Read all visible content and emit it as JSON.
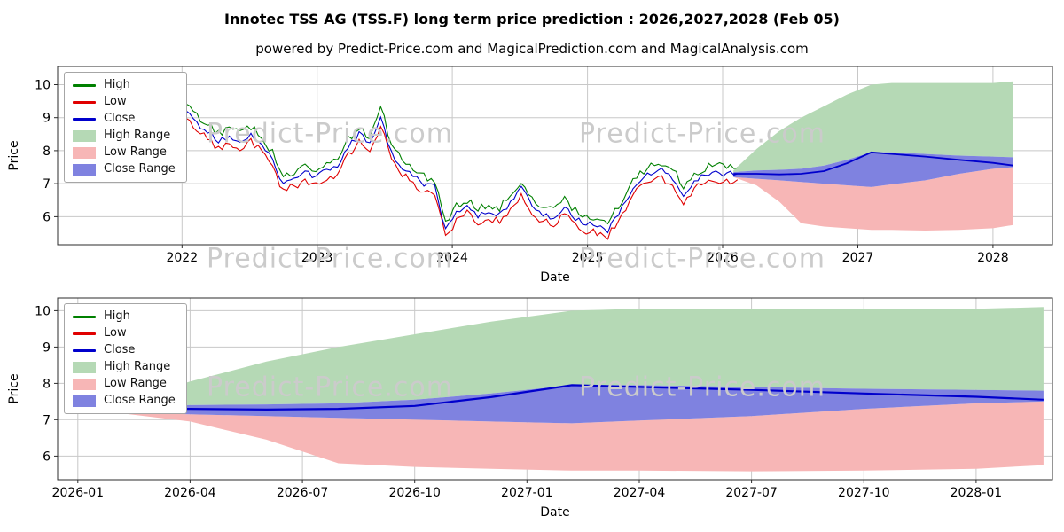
{
  "header": {
    "title": "Innotec TSS AG (TSS.F) long term price prediction : 2026,2027,2028 (Feb 05)",
    "subtitle": "powered by Predict-Price.com and MagicalPrediction.com and MagicalAnalysis.com"
  },
  "watermark": "Predict-Price.com",
  "colors": {
    "high_line": "#008000",
    "low_line": "#e00000",
    "close_line": "#0000cc",
    "high_range_fill": "#b5d9b5",
    "low_range_fill": "#f7b6b6",
    "close_range_fill": "#7f82e0",
    "grid": "#c8c8c8",
    "axis": "#2b2b2b",
    "watermark_text": "#cbcbcb"
  },
  "chart_data": [
    {
      "type": "line",
      "role": "history-and-prediction",
      "xlabel": "Date",
      "ylabel": "Price",
      "xlim": [
        2021.08,
        2028.44
      ],
      "ylim": [
        5.15,
        10.55
      ],
      "grid": true,
      "legend_position": "upper left",
      "legend": [
        "High",
        "Low",
        "Close",
        "High Range",
        "Low Range",
        "Close Range"
      ],
      "xticks": [
        {
          "v": 2022,
          "label": "2022"
        },
        {
          "v": 2023,
          "label": "2023"
        },
        {
          "v": 2024,
          "label": "2024"
        },
        {
          "v": 2025,
          "label": "2025"
        },
        {
          "v": 2026,
          "label": "2026"
        },
        {
          "v": 2027,
          "label": "2027"
        },
        {
          "v": 2028,
          "label": "2028"
        }
      ],
      "yticks": [
        6,
        7,
        8,
        9,
        10
      ],
      "historical": {
        "x": [
          2021.55,
          2021.63,
          2021.71,
          2021.79,
          2021.87,
          2021.95,
          2022.03,
          2022.11,
          2022.19,
          2022.27,
          2022.35,
          2022.43,
          2022.51,
          2022.59,
          2022.67,
          2022.75,
          2022.83,
          2022.91,
          2022.99,
          2023.07,
          2023.15,
          2023.23,
          2023.31,
          2023.39,
          2023.47,
          2023.55,
          2023.63,
          2023.71,
          2023.79,
          2023.87,
          2023.95,
          2024.03,
          2024.11,
          2024.19,
          2024.27,
          2024.35,
          2024.43,
          2024.51,
          2024.59,
          2024.67,
          2024.75,
          2024.83,
          2024.91,
          2024.99,
          2025.07,
          2025.15,
          2025.23,
          2025.31,
          2025.39,
          2025.47,
          2025.55,
          2025.63,
          2025.71,
          2025.79,
          2025.87,
          2025.95,
          2026.03,
          2026.11
        ],
        "high": [
          10.02,
          9.82,
          10.02,
          9.72,
          9.92,
          9.62,
          9.42,
          9.02,
          8.82,
          8.52,
          8.67,
          8.52,
          8.72,
          8.42,
          7.92,
          7.22,
          7.37,
          7.52,
          7.47,
          7.62,
          7.72,
          8.32,
          8.72,
          8.42,
          9.45,
          8.12,
          7.72,
          7.42,
          7.22,
          7.12,
          5.85,
          6.32,
          6.52,
          6.22,
          6.37,
          6.27,
          6.62,
          7.12,
          6.52,
          6.32,
          6.17,
          6.52,
          6.17,
          6.02,
          5.97,
          5.82,
          6.32,
          6.92,
          7.32,
          7.57,
          7.62,
          7.42,
          6.92,
          7.32,
          7.47,
          7.57,
          7.5,
          7.48
        ],
        "low": [
          9.58,
          9.38,
          9.58,
          9.28,
          9.48,
          9.18,
          8.98,
          8.58,
          8.38,
          8.08,
          8.23,
          8.08,
          8.28,
          7.98,
          7.48,
          6.78,
          6.93,
          7.08,
          7.03,
          7.18,
          7.28,
          7.88,
          8.28,
          7.98,
          8.8,
          7.68,
          7.28,
          6.98,
          6.78,
          6.68,
          5.38,
          5.88,
          6.08,
          5.78,
          5.93,
          5.83,
          6.18,
          6.68,
          6.08,
          5.88,
          5.73,
          6.08,
          5.73,
          5.58,
          5.53,
          5.4,
          5.88,
          6.48,
          6.88,
          7.13,
          7.18,
          6.98,
          6.48,
          6.88,
          7.03,
          7.13,
          7.1,
          7.12
        ],
        "close": [
          9.8,
          9.6,
          9.8,
          9.5,
          9.7,
          9.4,
          9.2,
          8.8,
          8.6,
          8.3,
          8.45,
          8.3,
          8.5,
          8.2,
          7.7,
          7.0,
          7.15,
          7.3,
          7.25,
          7.4,
          7.5,
          8.1,
          8.5,
          8.2,
          9.1,
          7.9,
          7.5,
          7.2,
          7.0,
          6.9,
          5.6,
          6.1,
          6.3,
          6.0,
          6.15,
          6.05,
          6.4,
          6.9,
          6.3,
          6.1,
          5.95,
          6.3,
          5.95,
          5.8,
          5.75,
          5.6,
          6.1,
          6.7,
          7.1,
          7.35,
          7.4,
          7.2,
          6.7,
          7.1,
          7.25,
          7.35,
          7.3,
          7.3
        ]
      },
      "prediction": {
        "x": [
          2026.08,
          2026.25,
          2026.42,
          2026.58,
          2026.75,
          2026.92,
          2027.1,
          2027.25,
          2027.5,
          2027.75,
          2028.0,
          2028.15
        ],
        "high_range_top": [
          7.4,
          8.05,
          8.6,
          9.0,
          9.35,
          9.7,
          10.0,
          10.05,
          10.05,
          10.05,
          10.05,
          10.1
        ],
        "low_range_bottom": [
          7.2,
          6.95,
          6.45,
          5.8,
          5.7,
          5.65,
          5.6,
          5.6,
          5.58,
          5.6,
          5.65,
          5.75
        ],
        "close_range_top": [
          7.35,
          7.4,
          7.42,
          7.45,
          7.55,
          7.72,
          7.95,
          7.95,
          7.9,
          7.85,
          7.82,
          7.8
        ],
        "close_range_bottom": [
          7.2,
          7.15,
          7.1,
          7.05,
          7.0,
          6.95,
          6.9,
          6.98,
          7.1,
          7.3,
          7.45,
          7.5
        ],
        "close": [
          7.3,
          7.3,
          7.28,
          7.3,
          7.38,
          7.62,
          7.95,
          7.9,
          7.82,
          7.72,
          7.63,
          7.55
        ]
      }
    },
    {
      "type": "line",
      "role": "prediction-detail",
      "xlabel": "Date",
      "ylabel": "Price",
      "xlim": [
        2025.955,
        2028.17
      ],
      "ylim": [
        5.35,
        10.35
      ],
      "grid": true,
      "legend_position": "upper left",
      "legend": [
        "High",
        "Low",
        "Close",
        "High Range",
        "Low Range",
        "Close Range"
      ],
      "xticks": [
        {
          "v": 2026.0,
          "label": "2026-01"
        },
        {
          "v": 2026.25,
          "label": "2026-04"
        },
        {
          "v": 2026.5,
          "label": "2026-07"
        },
        {
          "v": 2026.75,
          "label": "2026-10"
        },
        {
          "v": 2027.0,
          "label": "2027-01"
        },
        {
          "v": 2027.25,
          "label": "2027-04"
        },
        {
          "v": 2027.5,
          "label": "2027-07"
        },
        {
          "v": 2027.75,
          "label": "2027-10"
        },
        {
          "v": 2028.0,
          "label": "2028-01"
        }
      ],
      "yticks": [
        6,
        7,
        8,
        9,
        10
      ],
      "prediction": {
        "x": [
          2026.08,
          2026.25,
          2026.42,
          2026.58,
          2026.75,
          2026.92,
          2027.1,
          2027.25,
          2027.5,
          2027.75,
          2028.0,
          2028.15
        ],
        "high_range_top": [
          7.4,
          8.05,
          8.6,
          9.0,
          9.35,
          9.7,
          10.0,
          10.05,
          10.05,
          10.05,
          10.05,
          10.1
        ],
        "low_range_bottom": [
          7.2,
          6.95,
          6.45,
          5.8,
          5.7,
          5.65,
          5.6,
          5.6,
          5.58,
          5.6,
          5.65,
          5.75
        ],
        "close_range_top": [
          7.35,
          7.4,
          7.42,
          7.45,
          7.55,
          7.72,
          7.95,
          7.95,
          7.9,
          7.85,
          7.82,
          7.8
        ],
        "close_range_bottom": [
          7.2,
          7.15,
          7.1,
          7.05,
          7.0,
          6.95,
          6.9,
          6.98,
          7.1,
          7.3,
          7.45,
          7.5
        ],
        "close": [
          7.3,
          7.3,
          7.28,
          7.3,
          7.38,
          7.62,
          7.95,
          7.9,
          7.82,
          7.72,
          7.63,
          7.55
        ]
      }
    }
  ]
}
